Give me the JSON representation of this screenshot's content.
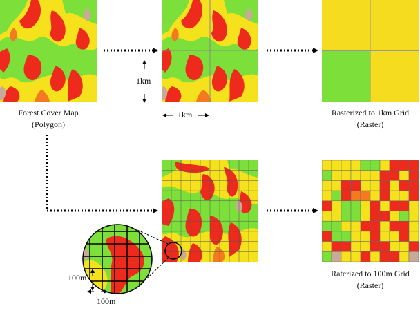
{
  "labels": {
    "forest_map_title": "Forest Cover Map",
    "forest_map_sub": "(Polygon)",
    "raster_1km_title": "Rasterized to 1km Grid",
    "raster_1km_sub": "(Raster)",
    "raster_100m_title": "Raterized to 100m Grid",
    "raster_100m_sub": "(Raster)",
    "dim_1km_vertical": "1km",
    "dim_1km_horizontal": "1km",
    "dim_100m_vertical": "100m",
    "dim_100m_horizontal": "100m"
  },
  "colors": {
    "red": "#ee2a1c",
    "orange": "#f47a1f",
    "yellow": "#f5e21c",
    "green": "#7de03a",
    "tan": "#c9aa99",
    "raster_1km_cells": [
      "#f5dc1e",
      "#f5dc1e",
      "#7de03a",
      "#f5dc1e"
    ]
  },
  "icons": {
    "arrow": "dotted-arrow-icon",
    "magnifier": "magnifier-circle-icon"
  }
}
